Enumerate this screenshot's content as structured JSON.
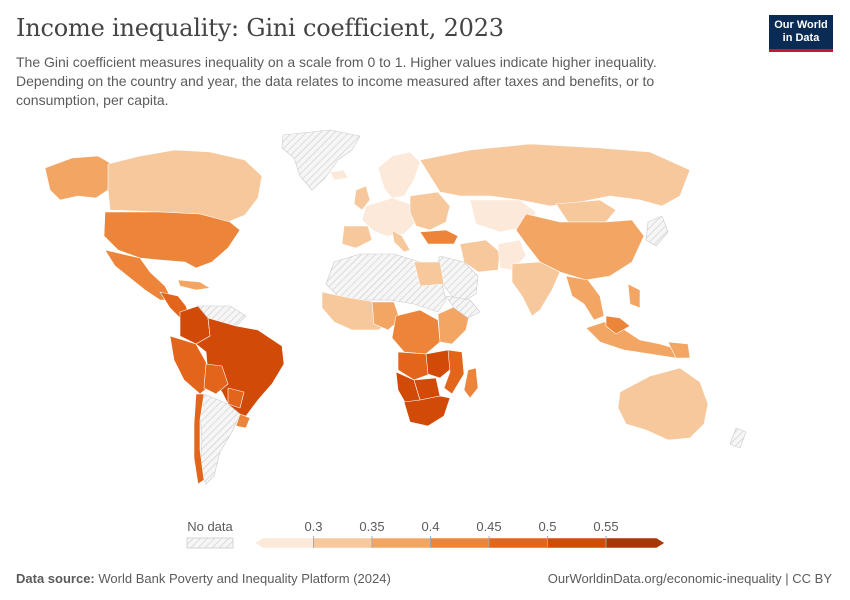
{
  "header": {
    "title": "Income inequality: Gini coefficient, 2023",
    "subtitle": "The Gini coefficient measures inequality on a scale from 0 to 1. Higher values indicate higher inequality. Depending on the country and year, the data relates to income measured after taxes and benefits, or to consumption, per capita."
  },
  "logo": {
    "line1": "Our World",
    "line2": "in Data"
  },
  "legend": {
    "no_data_label": "No data",
    "ticks": [
      "0.3",
      "0.35",
      "0.4",
      "0.45",
      "0.5",
      "0.55"
    ],
    "bin_colors": [
      "#fce9da",
      "#f8c89d",
      "#f3a564",
      "#ec8439",
      "#e2651b",
      "#d14a07",
      "#a83606"
    ],
    "no_data_color": "#e6e6e6"
  },
  "map_data": {
    "color_scale": {
      "very_low": "#fce9da",
      "low": "#f8c89d",
      "medium": "#f3a564",
      "medium_high": "#ec8439",
      "high": "#e2651b",
      "very_high": "#d14a07",
      "no_data": "#e6e6e6"
    }
  },
  "footer": {
    "source_label": "Data source:",
    "source_text": "World Bank Poverty and Inequality Platform (2024)",
    "url": "OurWorldinData.org/economic-inequality | CC BY"
  }
}
